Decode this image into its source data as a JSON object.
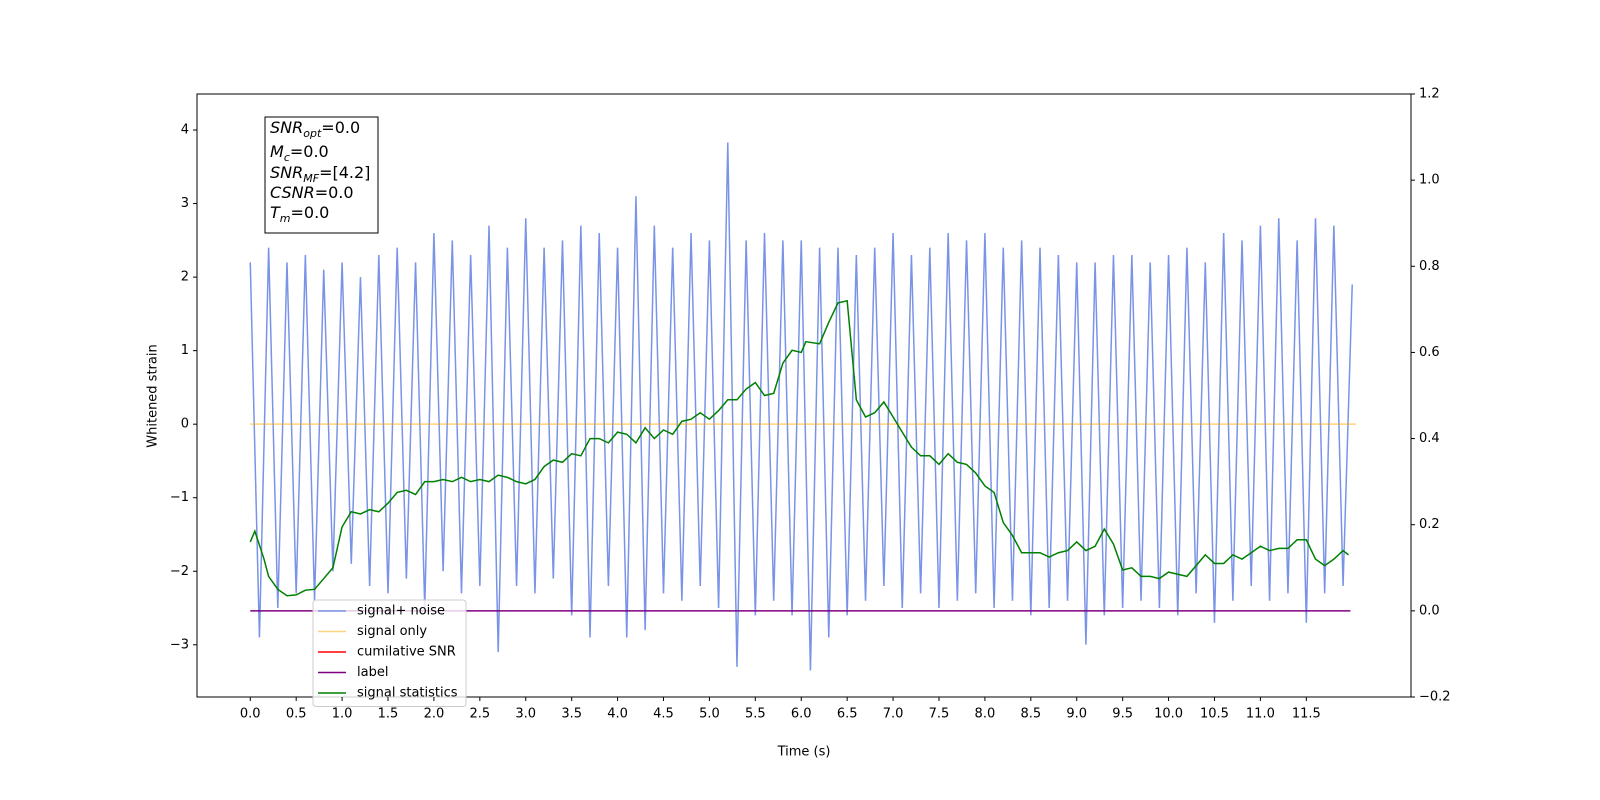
{
  "chart_data": {
    "type": "line",
    "xlabel": "Time (s)",
    "ylabel": "Whitened strain",
    "xlim": [
      -0.58,
      12.64
    ],
    "ylim": [
      -3.71,
      4.49
    ],
    "y2lim": [
      -0.2,
      1.2
    ],
    "xticks": [
      {
        "value": 0,
        "label": "0.0"
      },
      0.5,
      {
        "value": 1,
        "label": "1.0"
      },
      1.5,
      {
        "value": 2,
        "label": "2.0"
      },
      2.5,
      {
        "value": 3,
        "label": "3.0"
      },
      3.5,
      {
        "value": 4,
        "label": "4.0"
      },
      4.5,
      {
        "value": 5,
        "label": "5.0"
      },
      5.5,
      {
        "value": 6,
        "label": "6.0"
      },
      6.5,
      {
        "value": 7,
        "label": "7.0"
      },
      7.5,
      {
        "value": 8,
        "label": "8.0"
      },
      8.5,
      {
        "value": 9,
        "label": "9.0"
      },
      9.5,
      {
        "value": 10,
        "label": "10.0"
      },
      10.5,
      {
        "value": 11,
        "label": "11.0"
      },
      11.5
    ],
    "yticks": [
      {
        "value": -3,
        "label": "−3"
      },
      {
        "value": -2,
        "label": "−2"
      },
      {
        "value": -1,
        "label": "−1"
      },
      0,
      1,
      2,
      3,
      4
    ],
    "y2ticks": [
      {
        "value": -0.2,
        "label": "−0.2"
      },
      {
        "value": 0,
        "label": "0.0"
      },
      0.2,
      0.4,
      0.6,
      0.8,
      {
        "value": 1,
        "label": "1.0"
      },
      1.2
    ],
    "legend": "lower left",
    "annotation": [
      [
        "SNR",
        "opt",
        "=0.0"
      ],
      [
        "M",
        "c",
        "=0.0"
      ],
      [
        "SNR",
        "MF",
        "=[4.2]"
      ],
      [
        "CSNR",
        "",
        "=0.0"
      ],
      [
        "T",
        "m",
        "=0.0"
      ]
    ],
    "series": [
      {
        "name": "signal+ noise",
        "color": "#7994e6",
        "alpha": 1,
        "x": [
          0,
          0.1,
          0.2,
          0.3,
          0.4,
          0.5,
          0.6,
          0.7,
          0.8,
          0.9,
          1,
          1.1,
          1.2,
          1.3,
          1.4,
          1.5,
          1.6,
          1.7,
          1.8,
          1.9,
          2,
          2.1,
          2.2,
          2.3,
          2.4,
          2.5,
          2.6,
          2.7,
          2.8,
          2.9,
          3,
          3.1,
          3.2,
          3.3,
          3.4,
          3.5,
          3.6,
          3.7,
          3.8,
          3.9,
          4,
          4.1,
          4.2,
          4.3,
          4.4,
          4.5,
          4.6,
          4.7,
          4.8,
          4.9,
          5,
          5.1,
          5.2,
          5.3,
          5.4,
          5.5,
          5.6,
          5.7,
          5.8,
          5.9,
          6,
          6.1,
          6.2,
          6.3,
          6.4,
          6.5,
          6.6,
          6.7,
          6.8,
          6.9,
          7,
          7.1,
          7.2,
          7.3,
          7.4,
          7.5,
          7.6,
          7.7,
          7.8,
          7.9,
          8,
          8.1,
          8.2,
          8.3,
          8.4,
          8.5,
          8.6,
          8.7,
          8.8,
          8.9,
          9,
          9.1,
          9.2,
          9.3,
          9.4,
          9.5,
          9.6,
          9.7,
          9.8,
          9.9,
          10,
          10.1,
          10.2,
          10.3,
          10.4,
          10.5,
          10.6,
          10.7,
          10.8,
          10.9,
          11,
          11.1,
          11.2,
          11.3,
          11.4,
          11.5,
          11.6,
          11.7,
          11.8,
          11.9,
          12
        ],
        "values": [
          2.2,
          -2.9,
          2.4,
          -2.5,
          2.2,
          -2.3,
          2.3,
          -2.4,
          2.1,
          -2.0,
          2.2,
          -1.9,
          2.0,
          -2.2,
          2.3,
          -2.3,
          2.4,
          -2.1,
          2.2,
          -2.5,
          2.6,
          -2.0,
          2.5,
          -2.3,
          2.3,
          -2.2,
          2.7,
          -3.1,
          2.4,
          -2.2,
          2.8,
          -2.3,
          2.4,
          -2.1,
          2.5,
          -2.6,
          2.7,
          -2.9,
          2.6,
          -2.2,
          2.4,
          -2.9,
          3.1,
          -2.8,
          2.7,
          -2.3,
          2.4,
          -2.4,
          2.6,
          -2.2,
          2.5,
          -2.5,
          3.83,
          -3.3,
          2.5,
          -2.6,
          2.6,
          -2.4,
          2.5,
          -2.6,
          2.5,
          -3.35,
          2.4,
          -2.9,
          2.4,
          -2.6,
          2.3,
          -2.4,
          2.4,
          -2.2,
          2.6,
          -2.5,
          2.3,
          -2.3,
          2.4,
          -2.5,
          2.6,
          -2.4,
          2.5,
          -2.3,
          2.6,
          -2.5,
          2.4,
          -2.4,
          2.5,
          -2.6,
          2.4,
          -2.5,
          2.3,
          -2.4,
          2.2,
          -3.0,
          2.2,
          -2.6,
          2.3,
          -2.5,
          2.3,
          -2.4,
          2.2,
          -2.5,
          2.3,
          -2.6,
          2.4,
          -2.3,
          2.2,
          -2.7,
          2.6,
          -2.4,
          2.5,
          -2.2,
          2.7,
          -2.4,
          2.8,
          -2.3,
          2.5,
          -2.7,
          2.8,
          -2.3,
          2.7,
          -2.2,
          1.9
        ]
      },
      {
        "name": "signal only",
        "color": "#ffa500",
        "alpha": 0.5,
        "x": [
          0,
          12.04
        ],
        "values": [
          0,
          0
        ]
      },
      {
        "name": "cumilative SNR",
        "color": "#ff0000",
        "alpha": 1,
        "x": [],
        "values": []
      },
      {
        "name": "label",
        "color": "#800080",
        "alpha": 1,
        "axis": "y2",
        "x": [
          0,
          11.98
        ],
        "values": [
          0,
          0
        ]
      },
      {
        "name": "signal statistics",
        "color": "#008000",
        "alpha": 1,
        "axis": "y2",
        "x": [
          0,
          0.05,
          0.15,
          0.2,
          0.3,
          0.4,
          0.5,
          0.6,
          0.7,
          0.8,
          0.9,
          1,
          1.1,
          1.2,
          1.3,
          1.4,
          1.5,
          1.6,
          1.7,
          1.8,
          1.9,
          2,
          2.1,
          2.2,
          2.3,
          2.4,
          2.5,
          2.6,
          2.7,
          2.8,
          2.9,
          3,
          3.1,
          3.2,
          3.3,
          3.4,
          3.5,
          3.6,
          3.7,
          3.8,
          3.9,
          4,
          4.1,
          4.2,
          4.3,
          4.4,
          4.5,
          4.6,
          4.7,
          4.8,
          4.9,
          5,
          5.1,
          5.2,
          5.3,
          5.4,
          5.5,
          5.6,
          5.7,
          5.8,
          5.9,
          6,
          6.05,
          6.2,
          6.3,
          6.4,
          6.5,
          6.6,
          6.7,
          6.8,
          6.9,
          7,
          7.1,
          7.2,
          7.3,
          7.4,
          7.5,
          7.6,
          7.7,
          7.8,
          7.9,
          8,
          8.1,
          8.2,
          8.3,
          8.4,
          8.5,
          8.6,
          8.7,
          8.8,
          8.9,
          9,
          9.1,
          9.2,
          9.3,
          9.4,
          9.5,
          9.6,
          9.7,
          9.8,
          9.9,
          10,
          10.1,
          10.2,
          10.3,
          10.4,
          10.5,
          10.6,
          10.7,
          10.8,
          10.9,
          11,
          11.1,
          11.2,
          11.3,
          11.4,
          11.5,
          11.6,
          11.7,
          11.8,
          11.9,
          11.96
        ],
        "values": [
          0.16,
          0.185,
          0.12,
          0.08,
          0.05,
          0.035,
          0.037,
          0.048,
          0.05,
          0.075,
          0.1,
          0.195,
          0.23,
          0.225,
          0.235,
          0.23,
          0.25,
          0.275,
          0.28,
          0.27,
          0.3,
          0.3,
          0.305,
          0.3,
          0.31,
          0.3,
          0.305,
          0.3,
          0.315,
          0.31,
          0.3,
          0.295,
          0.305,
          0.335,
          0.35,
          0.345,
          0.365,
          0.36,
          0.4,
          0.4,
          0.39,
          0.415,
          0.41,
          0.39,
          0.425,
          0.4,
          0.42,
          0.41,
          0.44,
          0.445,
          0.46,
          0.445,
          0.465,
          0.49,
          0.49,
          0.515,
          0.53,
          0.5,
          0.505,
          0.575,
          0.605,
          0.6,
          0.625,
          0.62,
          0.67,
          0.715,
          0.72,
          0.49,
          0.45,
          0.46,
          0.485,
          0.45,
          0.415,
          0.38,
          0.36,
          0.36,
          0.34,
          0.365,
          0.345,
          0.34,
          0.32,
          0.29,
          0.275,
          0.205,
          0.175,
          0.135,
          0.135,
          0.135,
          0.125,
          0.135,
          0.14,
          0.16,
          0.14,
          0.15,
          0.19,
          0.155,
          0.095,
          0.1,
          0.08,
          0.08,
          0.075,
          0.09,
          0.085,
          0.08,
          0.105,
          0.13,
          0.11,
          0.11,
          0.13,
          0.12,
          0.135,
          0.15,
          0.14,
          0.145,
          0.145,
          0.165,
          0.165,
          0.12,
          0.105,
          0.12,
          0.14,
          0.13
        ]
      }
    ]
  }
}
